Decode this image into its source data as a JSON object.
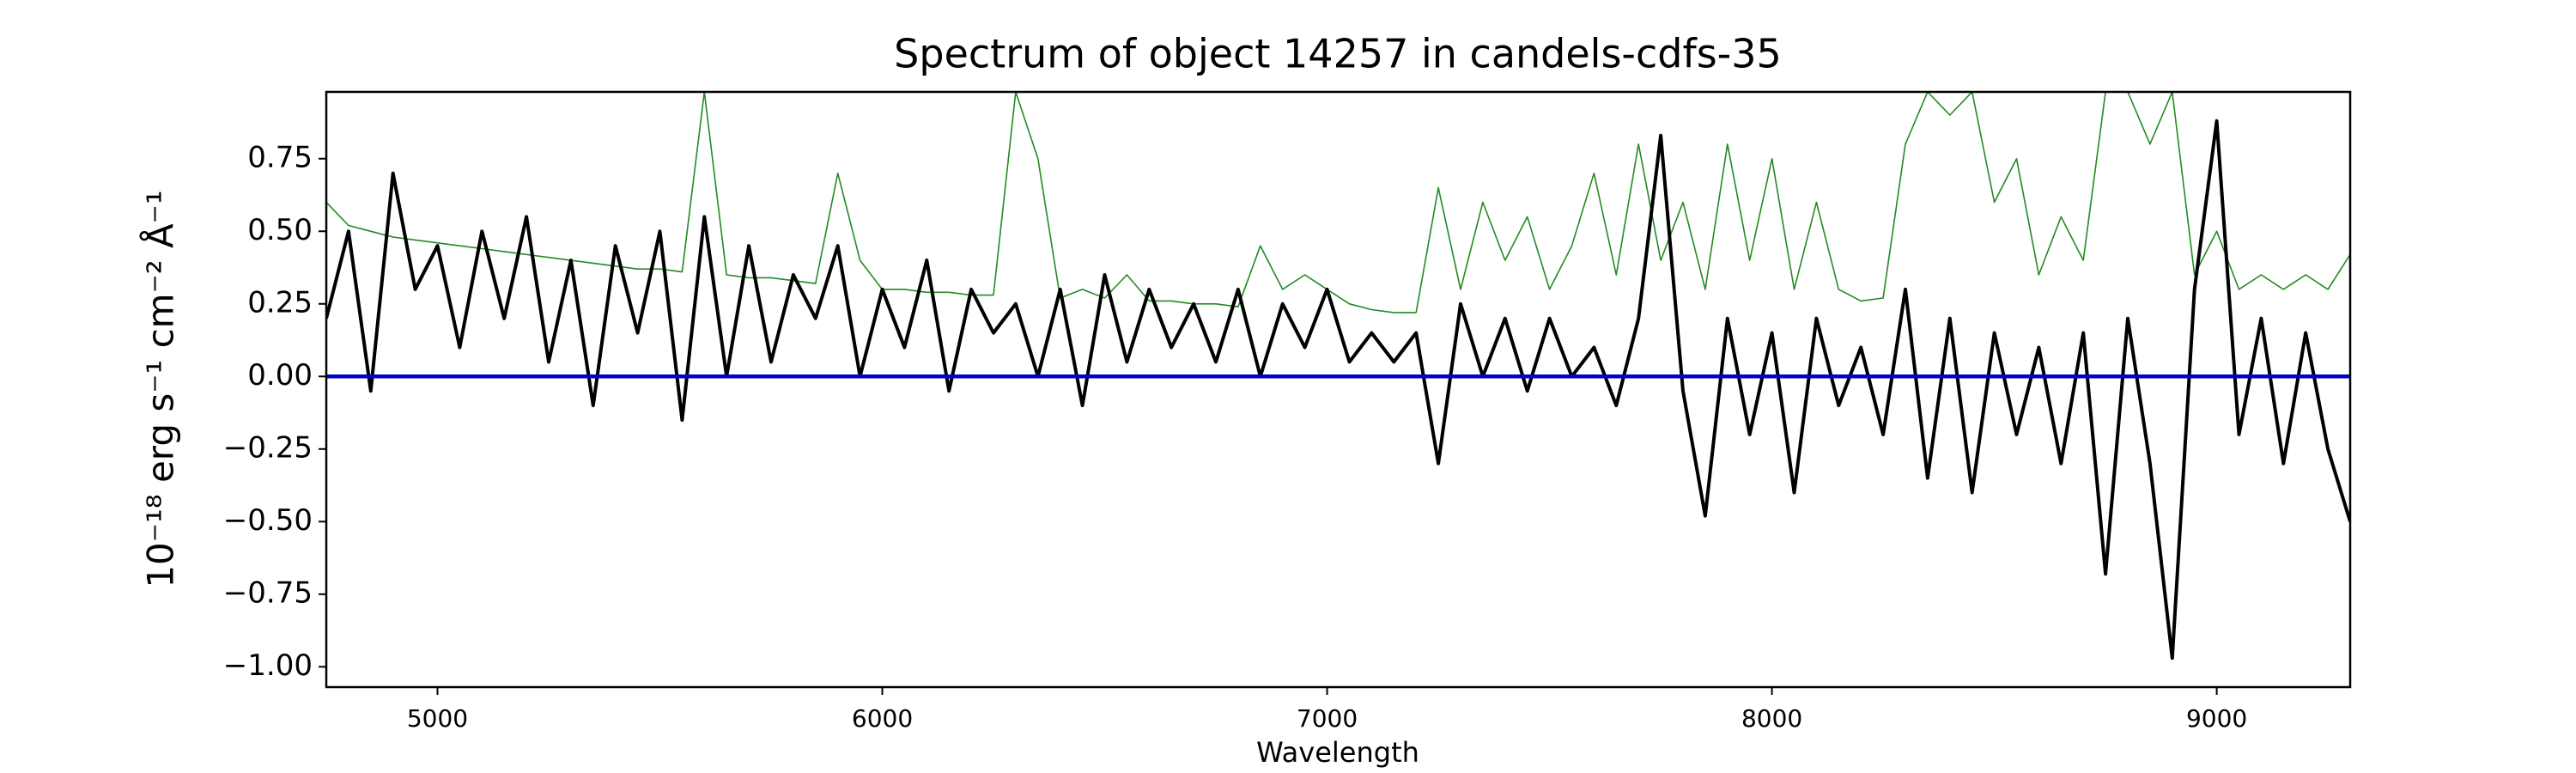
{
  "chart_data": {
    "type": "line",
    "title": "Spectrum of object 14257 in candels-cdfs-35",
    "xlabel": "Wavelength",
    "ylabel": "10⁻¹⁸ erg s⁻¹ cm⁻² Å⁻¹",
    "xlim": [
      4750,
      9300
    ],
    "ylim": [
      -1.07,
      0.98
    ],
    "xticks": [
      5000,
      6000,
      7000,
      8000,
      9000
    ],
    "yticks": [
      {
        "value": -1,
        "label": "−1.00"
      },
      {
        "value": -0.75,
        "label": "−0.75"
      },
      {
        "value": -0.5,
        "label": "−0.50"
      },
      {
        "value": -0.25,
        "label": "−0.25"
      },
      {
        "value": 0,
        "label": "0.00"
      },
      {
        "value": 0.25,
        "label": "0.25"
      },
      {
        "value": 0.5,
        "label": "0.50"
      },
      {
        "value": 0.75,
        "label": "0.75"
      }
    ],
    "grid": false,
    "x": [
      4750,
      4800,
      4850,
      4900,
      4950,
      5000,
      5050,
      5100,
      5150,
      5200,
      5250,
      5300,
      5350,
      5400,
      5450,
      5500,
      5550,
      5600,
      5650,
      5700,
      5750,
      5800,
      5850,
      5900,
      5950,
      6000,
      6050,
      6100,
      6150,
      6200,
      6250,
      6300,
      6350,
      6400,
      6450,
      6500,
      6550,
      6600,
      6650,
      6700,
      6750,
      6800,
      6850,
      6900,
      6950,
      7000,
      7050,
      7100,
      7150,
      7200,
      7250,
      7300,
      7350,
      7400,
      7450,
      7500,
      7550,
      7600,
      7650,
      7700,
      7750,
      7800,
      7850,
      7900,
      7950,
      8000,
      8050,
      8100,
      8150,
      8200,
      8250,
      8300,
      8350,
      8400,
      8450,
      8500,
      8550,
      8600,
      8650,
      8700,
      8750,
      8800,
      8850,
      8900,
      8950,
      9000,
      9050,
      9100,
      9150,
      9200,
      9250,
      9300
    ],
    "series": [
      {
        "color": "#228b22",
        "width": 1.6,
        "values": [
          0.6,
          0.52,
          0.5,
          0.48,
          0.47,
          0.46,
          0.45,
          0.44,
          0.43,
          0.42,
          0.41,
          0.4,
          0.39,
          0.38,
          0.37,
          0.37,
          0.36,
          0.98,
          0.35,
          0.34,
          0.34,
          0.33,
          0.32,
          0.7,
          0.4,
          0.3,
          0.3,
          0.29,
          0.29,
          0.28,
          0.28,
          0.98,
          0.75,
          0.27,
          0.3,
          0.27,
          0.35,
          0.26,
          0.26,
          0.25,
          0.25,
          0.24,
          0.45,
          0.3,
          0.35,
          0.3,
          0.25,
          0.23,
          0.22,
          0.22,
          0.65,
          0.3,
          0.6,
          0.4,
          0.55,
          0.3,
          0.45,
          0.7,
          0.35,
          0.8,
          0.4,
          0.6,
          0.3,
          0.8,
          0.4,
          0.75,
          0.3,
          0.6,
          0.3,
          0.26,
          0.27,
          0.8,
          0.98,
          0.9,
          0.98,
          0.6,
          0.75,
          0.35,
          0.55,
          0.4,
          0.98,
          0.98,
          0.8,
          0.98,
          0.35,
          0.5,
          0.3,
          0.35,
          0.3,
          0.35,
          0.3,
          0.42
        ]
      },
      {
        "color": "#000000",
        "width": 4,
        "values": [
          0.2,
          0.5,
          -0.05,
          0.7,
          0.3,
          0.45,
          0.1,
          0.5,
          0.2,
          0.55,
          0.05,
          0.4,
          -0.1,
          0.45,
          0.15,
          0.5,
          -0.15,
          0.55,
          0,
          0.45,
          0.05,
          0.35,
          0.2,
          0.45,
          0,
          0.3,
          0.1,
          0.4,
          -0.05,
          0.3,
          0.15,
          0.25,
          0,
          0.3,
          -0.1,
          0.35,
          0.05,
          0.3,
          0.1,
          0.25,
          0.05,
          0.3,
          0,
          0.25,
          0.1,
          0.3,
          0.05,
          0.15,
          0.05,
          0.15,
          -0.3,
          0.25,
          0,
          0.2,
          -0.05,
          0.2,
          0,
          0.1,
          -0.1,
          0.2,
          0.83,
          -0.05,
          -0.48,
          0.2,
          -0.2,
          0.15,
          -0.4,
          0.2,
          -0.1,
          0.1,
          -0.2,
          0.3,
          -0.35,
          0.2,
          -0.4,
          0.15,
          -0.2,
          0.1,
          -0.3,
          0.15,
          -0.68,
          0.2,
          -0.3,
          -0.97,
          0.3,
          0.88,
          -0.2,
          0.2,
          -0.3,
          0.15,
          -0.25,
          -0.5
        ]
      },
      {
        "color": "#0000cc",
        "width": 4.5,
        "values": [
          0,
          0,
          0,
          0,
          0,
          0,
          0,
          0,
          0,
          0,
          0,
          0,
          0,
          0,
          0,
          0,
          0,
          0,
          0,
          0,
          0,
          0,
          0,
          0,
          0,
          0,
          0,
          0,
          0,
          0,
          0,
          0,
          0,
          0,
          0,
          0,
          0,
          0,
          0,
          0,
          0,
          0,
          0,
          0,
          0,
          0,
          0,
          0,
          0,
          0,
          0,
          0,
          0,
          0,
          0,
          0,
          0,
          0,
          0,
          0,
          0,
          0,
          0,
          0,
          0,
          0,
          0,
          0,
          0,
          0,
          0,
          0,
          0,
          0,
          0,
          0,
          0,
          0,
          0,
          0,
          0,
          0,
          0,
          0,
          0,
          0,
          0,
          0,
          0,
          0,
          0,
          0
        ]
      }
    ]
  }
}
